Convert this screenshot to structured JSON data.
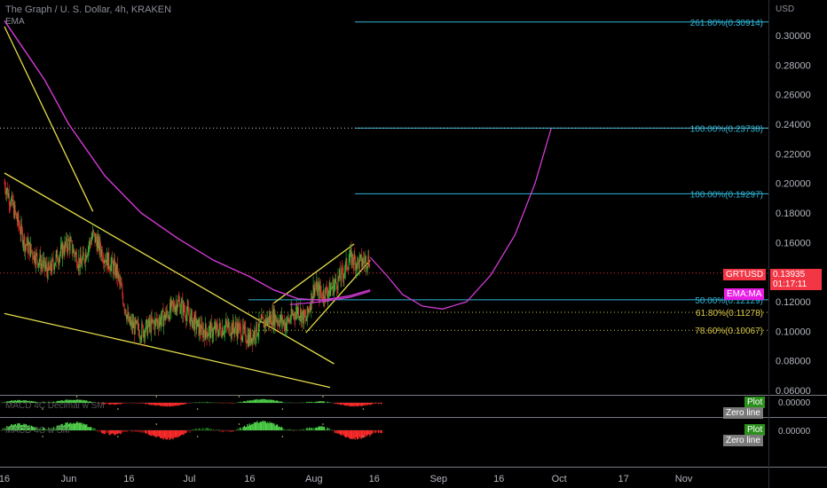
{
  "header": {
    "title": "The Graph / U. S. Dollar, 4h, KRAKEN",
    "indicator": "EMA"
  },
  "price_axis": {
    "currency": "USD",
    "ticks": [
      "0.30000",
      "0.28000",
      "0.26000",
      "0.24000",
      "0.22000",
      "0.20000",
      "0.18000",
      "0.16000",
      "0.14000",
      "0.12000",
      "0.10000",
      "0.08000",
      "0.06000"
    ]
  },
  "time_axis": {
    "ticks": [
      "16",
      "Jun",
      "16",
      "Jul",
      "16",
      "Aug",
      "16",
      "Sep",
      "16",
      "Oct",
      "17",
      "Nov"
    ]
  },
  "price_tags": {
    "symbol": "GRTUSD",
    "price": "0.13935",
    "countdown": "01:17:11",
    "ema_ma": "EMA:MA"
  },
  "fib_levels": [
    {
      "label": "261.80%(0.30914)",
      "price": 0.30914,
      "color": "#2fb5d6"
    },
    {
      "label": "100.00%(0.23738)",
      "price": 0.23738,
      "color": "#2fb5d6"
    },
    {
      "label": "100.00%(0.19297)",
      "price": 0.19297,
      "color": "#2fb5d6"
    },
    {
      "label": "50.00%(0.12129)",
      "price": 0.12129,
      "color": "#2fb5d6"
    },
    {
      "label": "61.80%(0.11278)",
      "price": 0.11278,
      "color": "#d8c94a"
    },
    {
      "label": "78.60%(0.10067)",
      "price": 0.10067,
      "color": "#d8c94a"
    }
  ],
  "macd_panes": [
    {
      "title": "MACD 4C Decimal w SM",
      "value": "0.00000",
      "plot_label": "Plot",
      "zero_label": "Zero line"
    },
    {
      "title": "MACD 4C w SM",
      "value": "0.00000",
      "plot_label": "Plot",
      "zero_label": "Zero line"
    }
  ],
  "colors": {
    "up": "#35c33b",
    "down": "#e8322f",
    "ema": "#d43ad6",
    "trendline": "#e6dd4a",
    "fib": "#2fb5d6",
    "background": "#000000"
  },
  "chart_data": {
    "type": "candlestick",
    "title": "The Graph / U. S. Dollar, 4h, KRAKEN",
    "x_ticks": [
      "16",
      "Jun",
      "16",
      "Jul",
      "16",
      "Aug",
      "16",
      "Sep",
      "16",
      "Oct",
      "17",
      "Nov"
    ],
    "ylim": [
      0.06,
      0.31
    ],
    "close_path": [
      [
        "May 16",
        0.2
      ],
      [
        "May 18",
        0.185
      ],
      [
        "May 21",
        0.16
      ],
      [
        "May 24",
        0.15
      ],
      [
        "May 27",
        0.14
      ],
      [
        "May 29",
        0.15
      ],
      [
        "Jun 1",
        0.16
      ],
      [
        "Jun 4",
        0.145
      ],
      [
        "Jun 7",
        0.165
      ],
      [
        "Jun 10",
        0.15
      ],
      [
        "Jun 13",
        0.14
      ],
      [
        "Jun 16",
        0.105
      ],
      [
        "Jun 19",
        0.1
      ],
      [
        "Jun 22",
        0.105
      ],
      [
        "Jun 25",
        0.11
      ],
      [
        "Jun 28",
        0.12
      ],
      [
        "Jul 1",
        0.11
      ],
      [
        "Jul 4",
        0.1
      ],
      [
        "Jul 7",
        0.1
      ],
      [
        "Jul 10",
        0.103
      ],
      [
        "Jul 13",
        0.102
      ],
      [
        "Jul 16",
        0.095
      ],
      [
        "Jul 19",
        0.105
      ],
      [
        "Jul 22",
        0.11
      ],
      [
        "Jul 25",
        0.105
      ],
      [
        "Jul 28",
        0.115
      ],
      [
        "Jul 30",
        0.107
      ],
      [
        "Aug 1",
        0.13
      ],
      [
        "Aug 3",
        0.125
      ],
      [
        "Aug 5",
        0.128
      ],
      [
        "Aug 8",
        0.138
      ],
      [
        "Aug 10",
        0.15
      ],
      [
        "Aug 12",
        0.146
      ],
      [
        "Aug 15",
        0.149
      ]
    ],
    "ema_path": [
      [
        "May 16",
        0.31
      ],
      [
        "May 21",
        0.29
      ],
      [
        "May 26",
        0.27
      ],
      [
        "Jun 1",
        0.24
      ],
      [
        "Jun 10",
        0.205
      ],
      [
        "Jun 19",
        0.18
      ],
      [
        "Jun 28",
        0.163
      ],
      [
        "Jul 7",
        0.148
      ],
      [
        "Jul 16",
        0.137
      ],
      [
        "Jul 22",
        0.128
      ],
      [
        "Jul 28",
        0.122
      ],
      [
        "Aug 3",
        0.121
      ],
      [
        "Aug 10",
        0.124
      ],
      [
        "Aug 15",
        0.128
      ]
    ],
    "projection_path": [
      [
        "Aug 15",
        0.15
      ],
      [
        "Aug 19",
        0.138
      ],
      [
        "Aug 23",
        0.125
      ],
      [
        "Aug 28",
        0.117
      ],
      [
        "Sep 2",
        0.115
      ],
      [
        "Sep 8",
        0.12
      ],
      [
        "Sep 14",
        0.138
      ],
      [
        "Sep 20",
        0.165
      ],
      [
        "Sep 25",
        0.2
      ],
      [
        "Sep 29",
        0.237
      ]
    ],
    "current_price": 0.13935
  }
}
